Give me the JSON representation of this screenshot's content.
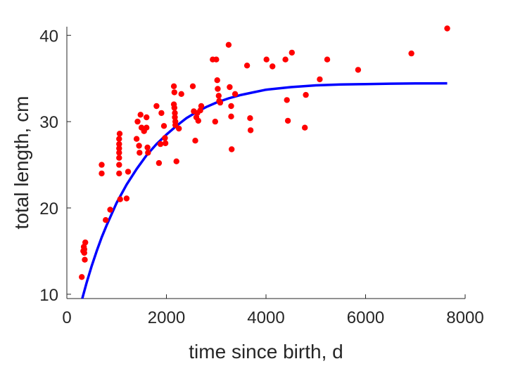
{
  "chart_data": {
    "type": "scatter",
    "xlabel": "time since birth, d",
    "ylabel": "total length, cm",
    "xlim": [
      0,
      8000
    ],
    "ylim": [
      9.5,
      41
    ],
    "xticks": [
      0,
      2000,
      4000,
      6000,
      8000
    ],
    "yticks": [
      10,
      20,
      30,
      40
    ],
    "grid": false,
    "legend": "none",
    "series": [
      {
        "kind": "points",
        "color": "#ff0000",
        "points": [
          [
            300,
            12.0
          ],
          [
            330,
            15.0
          ],
          [
            340,
            15.5
          ],
          [
            350,
            15.2
          ],
          [
            360,
            14.0
          ],
          [
            370,
            16.0
          ],
          [
            350,
            14.8
          ],
          [
            700,
            24.0
          ],
          [
            700,
            25.0
          ],
          [
            780,
            18.6
          ],
          [
            870,
            19.8
          ],
          [
            1050,
            24.0
          ],
          [
            1050,
            25.0
          ],
          [
            1050,
            25.8
          ],
          [
            1050,
            26.4
          ],
          [
            1050,
            26.9
          ],
          [
            1050,
            27.4
          ],
          [
            1050,
            28.0
          ],
          [
            1060,
            28.6
          ],
          [
            1070,
            21.0
          ],
          [
            1200,
            21.1
          ],
          [
            1230,
            24.2
          ],
          [
            1400,
            28.0
          ],
          [
            1420,
            30.0
          ],
          [
            1450,
            27.2
          ],
          [
            1460,
            26.4
          ],
          [
            1480,
            30.8
          ],
          [
            1500,
            29.3
          ],
          [
            1550,
            28.9
          ],
          [
            1600,
            30.5
          ],
          [
            1600,
            29.3
          ],
          [
            1620,
            27.0
          ],
          [
            1630,
            26.4
          ],
          [
            1800,
            31.8
          ],
          [
            1850,
            25.2
          ],
          [
            1880,
            27.4
          ],
          [
            1900,
            31.0
          ],
          [
            1950,
            29.5
          ],
          [
            1970,
            28.1
          ],
          [
            1980,
            27.5
          ],
          [
            2150,
            34.1
          ],
          [
            2160,
            33.4
          ],
          [
            2150,
            32.0
          ],
          [
            2160,
            31.6
          ],
          [
            2170,
            31.0
          ],
          [
            2170,
            30.5
          ],
          [
            2180,
            30.0
          ],
          [
            2180,
            29.6
          ],
          [
            2200,
            25.4
          ],
          [
            2250,
            29.2
          ],
          [
            2300,
            33.2
          ],
          [
            2530,
            34.1
          ],
          [
            2550,
            31.2
          ],
          [
            2580,
            27.8
          ],
          [
            2600,
            30.5
          ],
          [
            2620,
            31.0
          ],
          [
            2640,
            30.1
          ],
          [
            2680,
            31.3
          ],
          [
            2700,
            31.8
          ],
          [
            2930,
            37.2
          ],
          [
            3000,
            37.2
          ],
          [
            2980,
            30.0
          ],
          [
            3020,
            34.8
          ],
          [
            3030,
            33.8
          ],
          [
            3050,
            33.0
          ],
          [
            3060,
            32.4
          ],
          [
            3080,
            32.2
          ],
          [
            3250,
            38.9
          ],
          [
            3270,
            34.0
          ],
          [
            3300,
            31.8
          ],
          [
            3300,
            30.6
          ],
          [
            3310,
            26.8
          ],
          [
            3380,
            33.2
          ],
          [
            3620,
            36.5
          ],
          [
            3680,
            30.4
          ],
          [
            3690,
            29.0
          ],
          [
            4010,
            37.2
          ],
          [
            4130,
            36.4
          ],
          [
            4390,
            37.2
          ],
          [
            4420,
            32.5
          ],
          [
            4440,
            30.1
          ],
          [
            4520,
            38.0
          ],
          [
            4780,
            29.3
          ],
          [
            4800,
            33.1
          ],
          [
            5080,
            34.9
          ],
          [
            5230,
            37.2
          ],
          [
            5850,
            36.0
          ],
          [
            6920,
            37.9
          ],
          [
            7640,
            40.8
          ]
        ]
      },
      {
        "kind": "curve",
        "color": "#0000ff",
        "points": [
          [
            310,
            9.5
          ],
          [
            400,
            11.4
          ],
          [
            500,
            13.3
          ],
          [
            600,
            15.0
          ],
          [
            700,
            16.6
          ],
          [
            800,
            18.0
          ],
          [
            900,
            19.3
          ],
          [
            1000,
            20.6
          ],
          [
            1200,
            22.7
          ],
          [
            1400,
            24.5
          ],
          [
            1600,
            26.1
          ],
          [
            1800,
            27.4
          ],
          [
            2000,
            28.5
          ],
          [
            2200,
            29.5
          ],
          [
            2400,
            30.4
          ],
          [
            2600,
            31.1
          ],
          [
            2800,
            31.7
          ],
          [
            3000,
            32.2
          ],
          [
            3250,
            32.7
          ],
          [
            3500,
            33.1
          ],
          [
            3750,
            33.4
          ],
          [
            4000,
            33.7
          ],
          [
            4500,
            34.0
          ],
          [
            5000,
            34.2
          ],
          [
            5500,
            34.3
          ],
          [
            6000,
            34.35
          ],
          [
            6500,
            34.4
          ],
          [
            7000,
            34.42
          ],
          [
            7640,
            34.44
          ]
        ]
      }
    ]
  }
}
